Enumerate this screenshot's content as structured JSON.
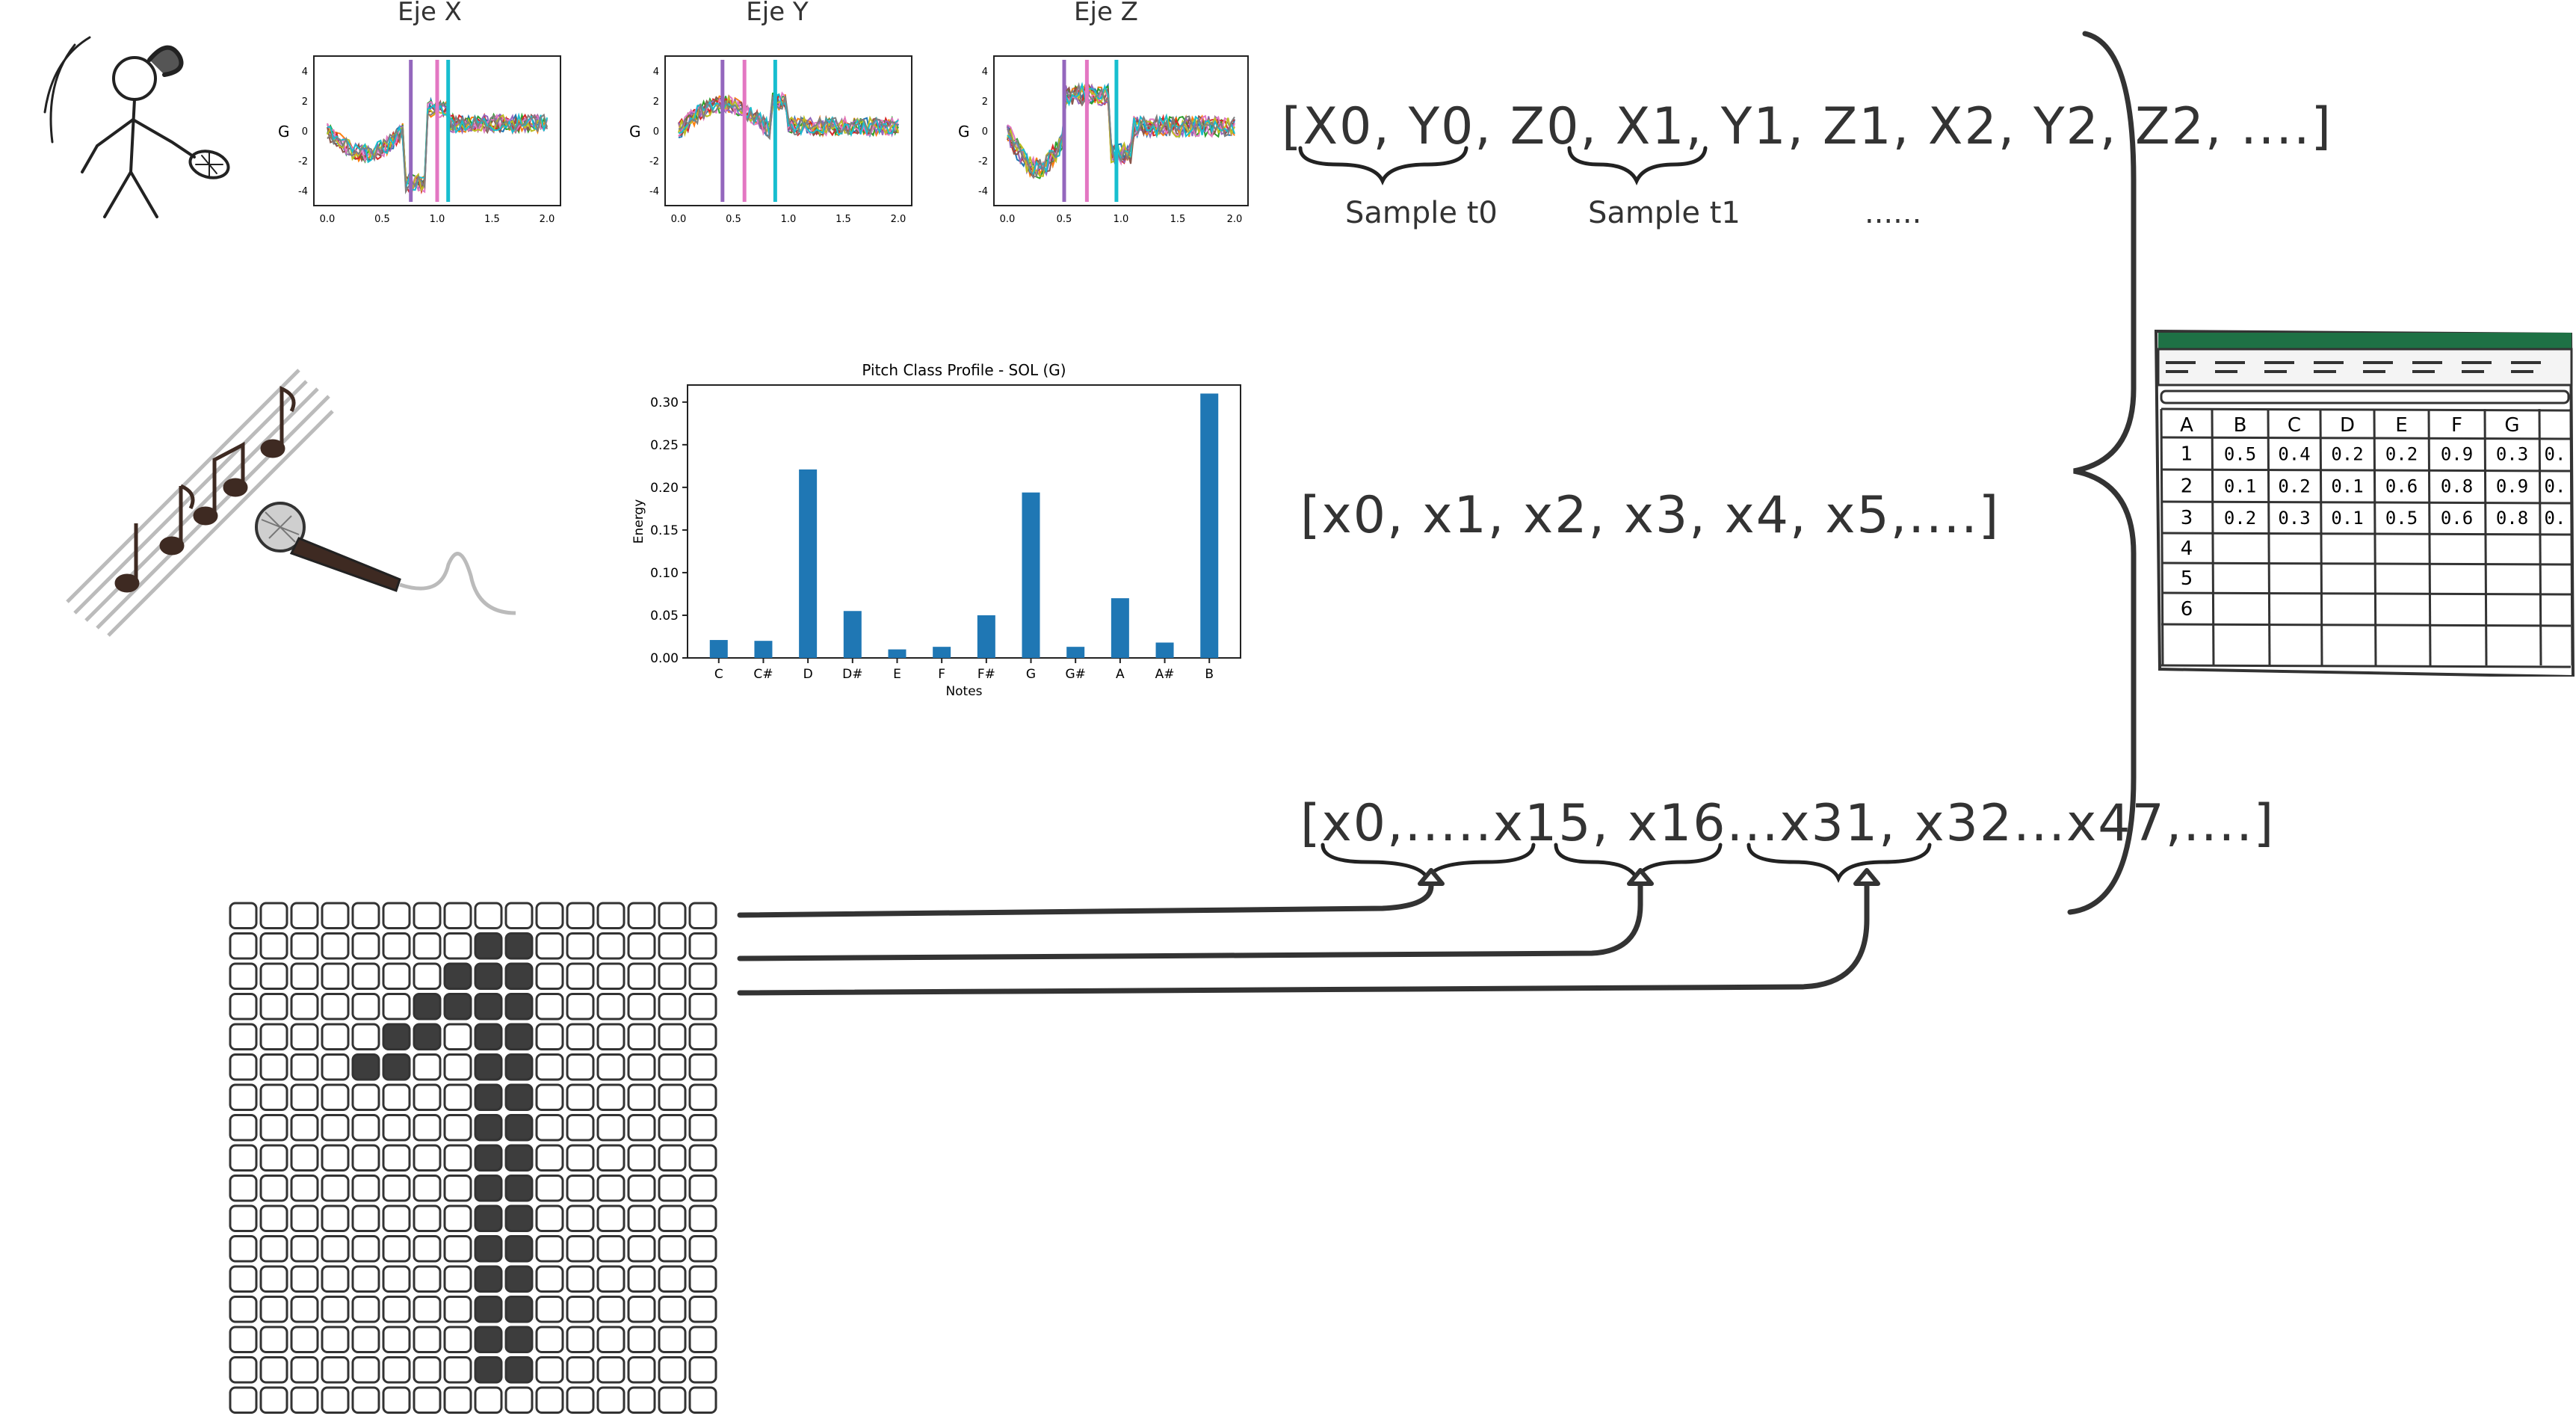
{
  "accelerometer": {
    "titles": [
      "Eje X",
      "Eje Y",
      "Eje Z"
    ],
    "ylabel": "G",
    "yticks": [
      "4",
      "2",
      "0",
      "-2",
      "-4"
    ],
    "xticks": [
      "0.0",
      "0.5",
      "1.0",
      "1.5",
      "2.0"
    ]
  },
  "formula_accel": "[X0, Y0, Z0, X1, Y1, Z1, X2, Y2, Z2, ....]",
  "sample_labels": [
    "Sample t0",
    "Sample t1",
    "......"
  ],
  "formula_audio": "[x0, x1, x2, x3, x4, x5,....]",
  "formula_image": "[x0,.....x15, x16...x31, x32...x47,....]",
  "chart_data": {
    "type": "bar",
    "title": "Pitch Class Profile - SOL (G)",
    "xlabel": "Notes",
    "ylabel": "Energy",
    "categories": [
      "C",
      "C#",
      "D",
      "D#",
      "E",
      "F",
      "F#",
      "G",
      "G#",
      "A",
      "A#",
      "B"
    ],
    "values": [
      0.021,
      0.02,
      0.221,
      0.055,
      0.01,
      0.013,
      0.05,
      0.194,
      0.013,
      0.07,
      0.018,
      0.31
    ],
    "ylim": [
      0,
      0.32
    ],
    "yticks": [
      0.0,
      0.05,
      0.1,
      0.15,
      0.2,
      0.25,
      0.3
    ],
    "ytick_labels": [
      "0.00",
      "0.05",
      "0.10",
      "0.15",
      "0.20",
      "0.25",
      "0.30"
    ],
    "color": "#1f77b4"
  },
  "spreadsheet": {
    "columns": [
      "A",
      "B",
      "C",
      "D",
      "E",
      "F",
      "G"
    ],
    "rows": [
      {
        "num": "1",
        "values": [
          "0.5",
          "0.4",
          "0.2",
          "0.2",
          "0.9",
          "0.3",
          "0."
        ]
      },
      {
        "num": "2",
        "values": [
          "0.1",
          "0.2",
          "0.1",
          "0.6",
          "0.8",
          "0.9",
          "0."
        ]
      },
      {
        "num": "3",
        "values": [
          "0.2",
          "0.3",
          "0.1",
          "0.5",
          "0.6",
          "0.8",
          "0."
        ]
      },
      {
        "num": "4",
        "values": []
      },
      {
        "num": "5",
        "values": []
      },
      {
        "num": "6",
        "values": []
      }
    ],
    "header_color": "#1e7145"
  },
  "pixel_grid": {
    "rows": 17,
    "cols": 16,
    "filled_color": "#3d3d3d",
    "filled": [
      [
        1,
        8
      ],
      [
        1,
        9
      ],
      [
        2,
        7
      ],
      [
        2,
        8
      ],
      [
        2,
        9
      ],
      [
        3,
        6
      ],
      [
        3,
        7
      ],
      [
        3,
        8
      ],
      [
        3,
        9
      ],
      [
        4,
        5
      ],
      [
        4,
        6
      ],
      [
        4,
        8
      ],
      [
        4,
        9
      ],
      [
        5,
        4
      ],
      [
        5,
        5
      ],
      [
        5,
        8
      ],
      [
        5,
        9
      ],
      [
        6,
        8
      ],
      [
        6,
        9
      ],
      [
        7,
        8
      ],
      [
        7,
        9
      ],
      [
        8,
        8
      ],
      [
        8,
        9
      ],
      [
        9,
        8
      ],
      [
        9,
        9
      ],
      [
        10,
        8
      ],
      [
        10,
        9
      ],
      [
        11,
        8
      ],
      [
        11,
        9
      ],
      [
        12,
        8
      ],
      [
        12,
        9
      ],
      [
        13,
        8
      ],
      [
        13,
        9
      ],
      [
        14,
        8
      ],
      [
        14,
        9
      ],
      [
        15,
        8
      ],
      [
        15,
        9
      ]
    ]
  },
  "icons": {
    "tennis": "tennis-player-icon",
    "music": "music-staff-icon",
    "microphone": "microphone-icon",
    "spreadsheet": "spreadsheet-icon"
  }
}
